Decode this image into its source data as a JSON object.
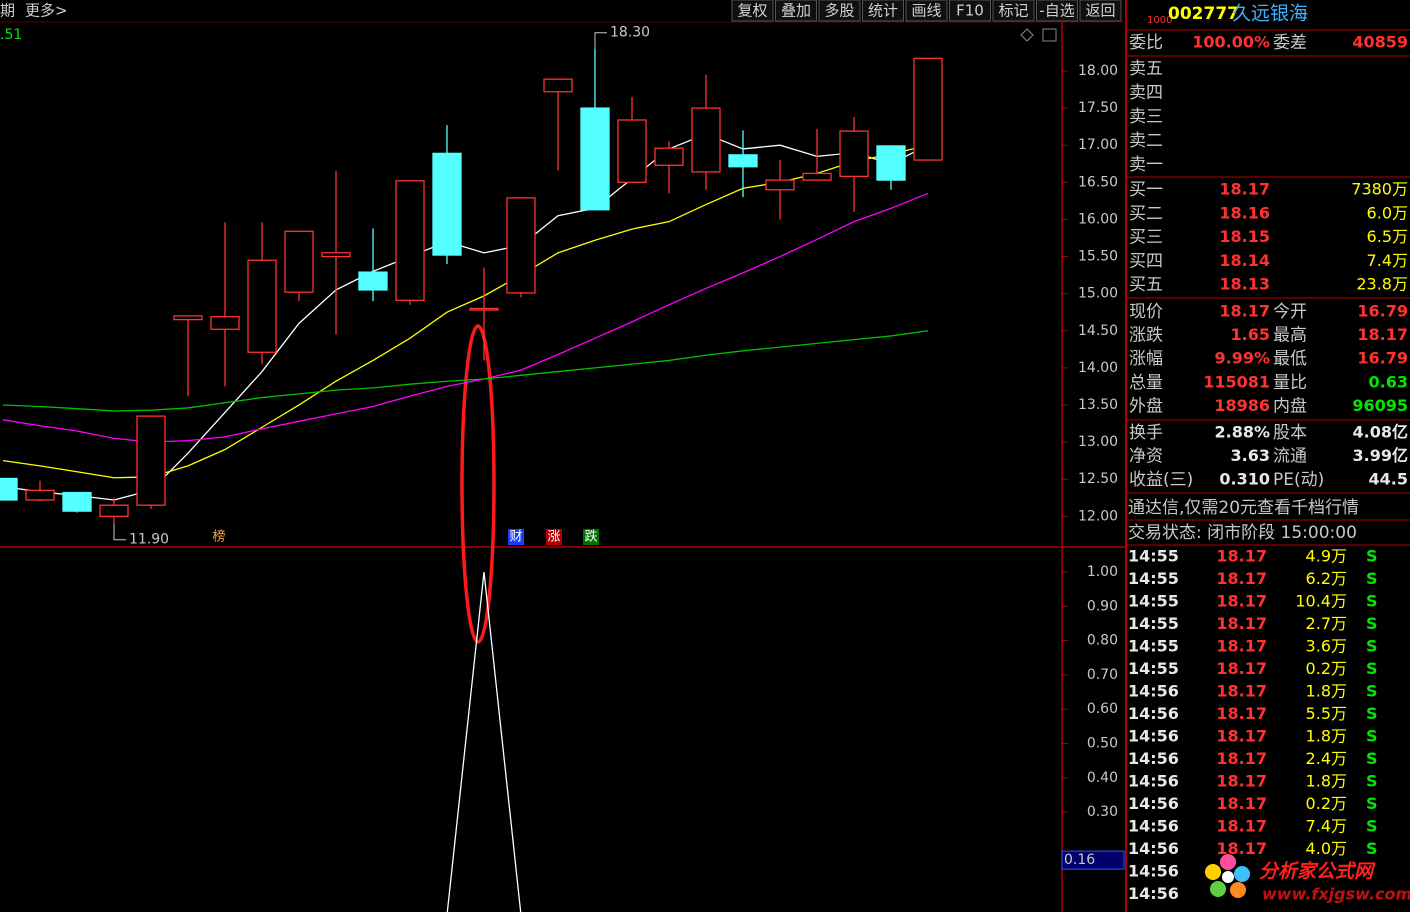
{
  "toolbar": {
    "left": [
      "期",
      "更多>"
    ],
    "buttons": [
      "复权",
      "叠加",
      "多股",
      "统计",
      "画线",
      "F10",
      "标记",
      "-自选",
      "返回"
    ]
  },
  "chart_data": [
    {
      "type": "candlestick",
      "corner_label": ".51",
      "open": [
        12.51,
        12.22,
        12.32,
        12.0,
        12.15,
        14.65,
        14.52,
        14.21,
        15.02,
        15.5,
        15.29,
        14.91,
        16.89,
        14.78,
        15.01,
        17.72,
        17.5,
        16.5,
        16.73,
        16.64,
        16.87,
        16.4,
        16.53,
        16.58,
        16.99,
        16.8
      ],
      "high": [
        12.51,
        12.48,
        12.32,
        12.25,
        13.35,
        14.7,
        15.96,
        15.96,
        15.84,
        16.65,
        15.88,
        16.52,
        17.27,
        15.35,
        16.29,
        17.89,
        18.3,
        17.65,
        17.05,
        17.95,
        17.2,
        16.8,
        17.22,
        17.38,
        17.0,
        18.17
      ],
      "low": [
        12.22,
        12.2,
        12.05,
        11.9,
        12.1,
        13.62,
        13.75,
        14.05,
        14.9,
        14.45,
        14.9,
        14.85,
        15.4,
        14.1,
        14.95,
        16.66,
        16.13,
        16.5,
        16.35,
        16.4,
        16.3,
        16.0,
        16.53,
        16.1,
        16.4,
        16.8
      ],
      "close": [
        12.22,
        12.35,
        12.07,
        12.15,
        13.35,
        14.7,
        14.69,
        15.45,
        15.84,
        15.55,
        15.05,
        16.52,
        15.52,
        14.8,
        16.29,
        17.89,
        16.13,
        17.34,
        16.96,
        17.5,
        16.71,
        16.53,
        16.62,
        17.19,
        16.53,
        18.17
      ],
      "colors": {
        "up": "#ff3232",
        "down": "#54ffff"
      },
      "ma_lines": [
        {
          "color": "#ffffff",
          "values": [
            12.4,
            12.33,
            12.28,
            12.22,
            12.35,
            12.85,
            13.4,
            13.95,
            14.6,
            15.05,
            15.3,
            15.5,
            15.7,
            15.55,
            15.65,
            16.05,
            16.15,
            16.55,
            16.95,
            17.15,
            16.95,
            17.0,
            16.85,
            16.9,
            16.75,
            17.0
          ]
        },
        {
          "color": "#ffff00",
          "values": [
            12.75,
            12.68,
            12.6,
            12.52,
            12.53,
            12.68,
            12.9,
            13.2,
            13.5,
            13.82,
            14.1,
            14.4,
            14.75,
            14.97,
            15.25,
            15.55,
            15.72,
            15.87,
            15.97,
            16.2,
            16.42,
            16.5,
            16.62,
            16.78,
            16.88,
            17.0
          ]
        },
        {
          "color": "#ff00ff",
          "values": [
            13.3,
            13.22,
            13.15,
            13.05,
            13.0,
            13.02,
            13.07,
            13.18,
            13.28,
            13.38,
            13.48,
            13.62,
            13.75,
            13.85,
            13.97,
            14.18,
            14.4,
            14.62,
            14.85,
            15.07,
            15.28,
            15.5,
            15.73,
            15.97,
            16.15,
            16.35
          ]
        },
        {
          "color": "#00c000",
          "values": [
            13.5,
            13.48,
            13.45,
            13.42,
            13.43,
            13.46,
            13.53,
            13.6,
            13.65,
            13.7,
            13.73,
            13.78,
            13.82,
            13.85,
            13.9,
            13.95,
            14.0,
            14.05,
            14.1,
            14.17,
            14.23,
            14.28,
            14.33,
            14.38,
            14.43,
            14.5
          ]
        }
      ],
      "ylim": [
        11.6,
        18.66
      ],
      "yticks": [
        {
          "value": 18,
          "label": "18.00"
        },
        {
          "value": 17.5,
          "label": "17.50"
        },
        {
          "value": 17,
          "label": "17.00"
        },
        {
          "value": 16.5,
          "label": "16.50"
        },
        {
          "value": 16,
          "label": "16.00"
        },
        {
          "value": 15.5,
          "label": "15.50"
        },
        {
          "value": 15,
          "label": "15.00"
        },
        {
          "value": 14.5,
          "label": "14.50"
        },
        {
          "value": 14,
          "label": "14.00"
        },
        {
          "value": 13.5,
          "label": "13.50"
        },
        {
          "value": 13,
          "label": "13.00"
        },
        {
          "value": 12.5,
          "label": "12.50"
        },
        {
          "value": 12,
          "label": "12.00"
        }
      ],
      "annotations": [
        {
          "value": 18.3,
          "label": "18.30"
        },
        {
          "value": 11.9,
          "label": "11.90"
        }
      ],
      "markers": [
        "榜",
        "财",
        "涨",
        "跌"
      ]
    },
    {
      "type": "line",
      "color": "#ffffff",
      "values": [
        0,
        0,
        0,
        0,
        0,
        0,
        0,
        0,
        0,
        0,
        0,
        0,
        0,
        1,
        0,
        0,
        0,
        0,
        0,
        0,
        0,
        0,
        0,
        0,
        0,
        0
      ],
      "ylim": [
        0,
        1.07
      ],
      "yticks": [
        {
          "value": 1,
          "label": "1.00"
        },
        {
          "value": 0.9,
          "label": "0.90"
        },
        {
          "value": 0.8,
          "label": "0.80"
        },
        {
          "value": 0.7,
          "label": "0.70"
        },
        {
          "value": 0.6,
          "label": "0.60"
        },
        {
          "value": 0.5,
          "label": "0.50"
        },
        {
          "value": 0.4,
          "label": "0.40"
        },
        {
          "value": 0.3,
          "label": "0.30"
        }
      ],
      "cursor": {
        "value": 0.16,
        "label": "0.16"
      }
    }
  ],
  "quote": {
    "code_prefix": "1000",
    "code": "002777",
    "name": "久远银海",
    "weibi": [
      "委比",
      "100.00%",
      "委差",
      "40859"
    ],
    "sell": [
      "卖五",
      "卖四",
      "卖三",
      "卖二",
      "卖一"
    ],
    "buy": [
      [
        "买一",
        "18.17",
        "7380万"
      ],
      [
        "买二",
        "18.16",
        "6.0万"
      ],
      [
        "买三",
        "18.15",
        "6.5万"
      ],
      [
        "买四",
        "18.14",
        "7.4万"
      ],
      [
        "买五",
        "18.13",
        "23.8万"
      ]
    ],
    "stats1": [
      [
        "现价",
        "18.17",
        "今开",
        "16.79"
      ],
      [
        "涨跌",
        "1.65",
        "最高",
        "18.17"
      ],
      [
        "涨幅",
        "9.99%",
        "最低",
        "16.79"
      ],
      [
        "总量",
        "115081",
        "量比",
        "0.63"
      ],
      [
        "外盘",
        "18986",
        "内盘",
        "96095"
      ]
    ],
    "stats2": [
      [
        "换手",
        "2.88%",
        "股本",
        "4.08亿"
      ],
      [
        "净资",
        "3.63",
        "流通",
        "3.99亿"
      ],
      [
        "收益(三)",
        "0.310",
        "PE(动)",
        "44.5"
      ]
    ],
    "notice": "通达信,仅需20元查看千档行情",
    "status": "交易状态: 闭市阶段 15:00:00",
    "ticks": [
      [
        "14:55",
        "18.17",
        "4.9万",
        "S"
      ],
      [
        "14:55",
        "18.17",
        "6.2万",
        "S"
      ],
      [
        "14:55",
        "18.17",
        "10.4万",
        "S"
      ],
      [
        "14:55",
        "18.17",
        "2.7万",
        "S"
      ],
      [
        "14:55",
        "18.17",
        "3.6万",
        "S"
      ],
      [
        "14:55",
        "18.17",
        "0.2万",
        "S"
      ],
      [
        "14:56",
        "18.17",
        "1.8万",
        "S"
      ],
      [
        "14:56",
        "18.17",
        "5.5万",
        "S"
      ],
      [
        "14:56",
        "18.17",
        "1.8万",
        "S"
      ],
      [
        "14:56",
        "18.17",
        "2.4万",
        "S"
      ],
      [
        "14:56",
        "18.17",
        "1.8万",
        "S"
      ],
      [
        "14:56",
        "18.17",
        "0.2万",
        "S"
      ],
      [
        "14:56",
        "18.17",
        "7.4万",
        "S"
      ],
      [
        "14:56",
        "18.17",
        "4.0万",
        "S"
      ],
      [
        "14:56"
      ],
      [
        "14:56"
      ]
    ]
  },
  "watermark": {
    "title": "分析家公式网",
    "url": "www.fxjgsw.com"
  }
}
